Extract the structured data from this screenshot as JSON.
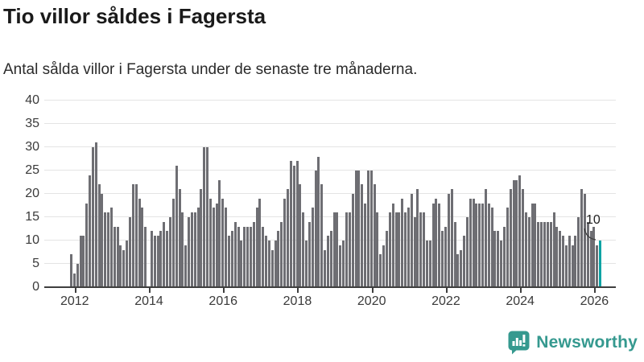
{
  "header": {
    "title": "Tio villor såldes i Fagersta",
    "subtitle": "Antal sålda villor i Fagersta under de senaste tre månaderna."
  },
  "chart_data": {
    "type": "bar",
    "title": "Tio villor såldes i Fagersta",
    "subtitle": "Antal sålda villor i Fagersta under de senaste tre månaderna.",
    "ylim": [
      0,
      40
    ],
    "y_ticks": [
      0,
      5,
      10,
      15,
      20,
      25,
      30,
      35,
      40
    ],
    "x_ticks": [
      2012,
      2014,
      2016,
      2018,
      2020,
      2022,
      2024,
      2026
    ],
    "x_start": "2011-12",
    "x_end": "2026-02",
    "grid": true,
    "bar_color": "#6e6e73",
    "highlight": {
      "index": 171,
      "value": 10,
      "label": "10",
      "color": "#0da3a4"
    },
    "values": [
      7,
      3,
      5,
      11,
      11,
      18,
      24,
      30,
      31,
      22,
      20,
      16,
      16,
      17,
      13,
      13,
      9,
      8,
      10,
      15,
      22,
      22,
      19,
      17,
      13,
      0,
      12,
      11,
      11,
      12,
      14,
      12,
      15,
      19,
      26,
      21,
      16,
      9,
      15,
      16,
      16,
      17,
      21,
      30,
      30,
      19,
      17,
      18,
      23,
      19,
      17,
      11,
      12,
      14,
      13,
      10,
      13,
      13,
      13,
      14,
      17,
      19,
      13,
      11,
      10,
      8,
      10,
      12,
      14,
      19,
      21,
      27,
      26,
      27,
      22,
      16,
      10,
      14,
      17,
      25,
      28,
      22,
      8,
      11,
      12,
      16,
      16,
      9,
      10,
      16,
      16,
      20,
      25,
      25,
      22,
      18,
      25,
      25,
      22,
      16,
      7,
      9,
      12,
      16,
      18,
      16,
      16,
      19,
      16,
      17,
      20,
      15,
      21,
      16,
      16,
      10,
      10,
      18,
      19,
      18,
      12,
      13,
      20,
      21,
      14,
      7,
      8,
      11,
      15,
      19,
      19,
      18,
      18,
      18,
      21,
      18,
      17,
      12,
      12,
      10,
      13,
      17,
      21,
      23,
      23,
      24,
      21,
      16,
      15,
      18,
      18,
      14,
      14,
      14,
      14,
      14,
      16,
      13,
      12,
      11,
      9,
      11,
      9,
      11,
      15,
      21,
      20,
      14,
      12,
      13,
      9,
      10
    ]
  },
  "branding": {
    "logo_text": "Newsworthy",
    "logo_color": "#35998f"
  }
}
